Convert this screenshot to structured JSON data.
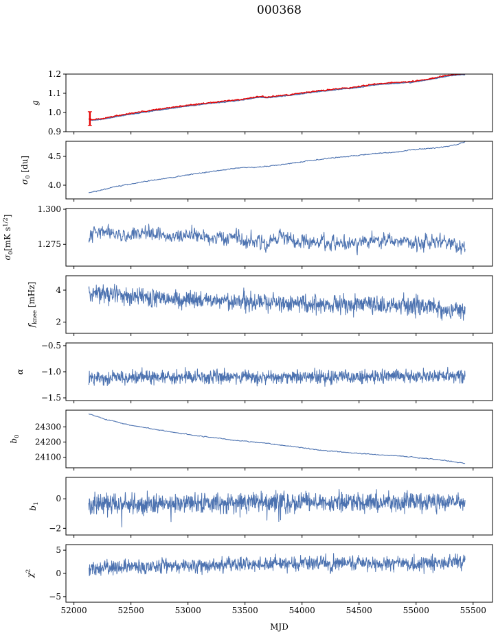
{
  "title": "000368",
  "chart_data": {
    "type": "line",
    "title": "000368",
    "xlabel": "MJD",
    "background": "#ffffff",
    "axis_color": "#000000",
    "line_color_primary": "#4c72b0",
    "line_color_secondary": "#e60000",
    "x_range": [
      51930,
      55670
    ],
    "x_data_range": [
      52130,
      55430
    ],
    "x_ticks": [
      {
        "v": 52000,
        "l": "52000"
      },
      {
        "v": 52500,
        "l": "52500"
      },
      {
        "v": 53000,
        "l": "53000"
      },
      {
        "v": 53500,
        "l": "53500"
      },
      {
        "v": 54000,
        "l": "54000"
      },
      {
        "v": 54500,
        "l": "54500"
      },
      {
        "v": 55000,
        "l": "55000"
      },
      {
        "v": 55500,
        "l": "55500"
      }
    ],
    "panels": [
      {
        "name": "g",
        "ylabel": [
          {
            "t": "g",
            "i": 1
          }
        ],
        "ylim": [
          0.9,
          1.2
        ],
        "yticks": [
          {
            "v": 0.9,
            "l": "0.9"
          },
          {
            "v": 1.0,
            "l": "1.0"
          },
          {
            "v": 1.1,
            "l": "1.1"
          },
          {
            "v": 1.2,
            "l": "1.2"
          }
        ],
        "series": [
          {
            "name": "gain-fit",
            "color": "#4c72b0",
            "lw": 1.7,
            "noise": 0.0012,
            "smooth": 0.5,
            "points": 700,
            "seed": 11,
            "trend": [
              [
                52130,
                0.965
              ],
              [
                52160,
                0.96
              ],
              [
                52250,
                0.965
              ],
              [
                52400,
                0.982
              ],
              [
                52600,
                1.001
              ],
              [
                52800,
                1.018
              ],
              [
                53000,
                1.034
              ],
              [
                53200,
                1.048
              ],
              [
                53400,
                1.06
              ],
              [
                53550,
                1.072
              ],
              [
                53620,
                1.08
              ],
              [
                53700,
                1.077
              ],
              [
                53900,
                1.09
              ],
              [
                54100,
                1.106
              ],
              [
                54300,
                1.119
              ],
              [
                54500,
                1.131
              ],
              [
                54650,
                1.145
              ],
              [
                54800,
                1.152
              ],
              [
                54950,
                1.156
              ],
              [
                55100,
                1.17
              ],
              [
                55200,
                1.181
              ],
              [
                55300,
                1.192
              ],
              [
                55380,
                1.197
              ],
              [
                55430,
                1.198
              ]
            ]
          },
          {
            "name": "gain-data",
            "color": "#e60000",
            "lw": 1.3,
            "noise": 0.0022,
            "smooth": 0.35,
            "points": 900,
            "seed": 12,
            "offset": 0.004,
            "trend_from": 0
          }
        ],
        "errorbar": {
          "x": 52140,
          "y": 0.968,
          "yerr": 0.036,
          "color": "#e60000"
        }
      },
      {
        "name": "sigma0_du",
        "ylabel": [
          {
            "t": "σ",
            "i": 1
          },
          {
            "t": "0",
            "sub": 1
          },
          {
            "t": " [du]"
          }
        ],
        "ylim": [
          3.762,
          4.762
        ],
        "yticks": [
          {
            "v": 4.0,
            "l": "4.0"
          },
          {
            "v": 4.5,
            "l": "4.5"
          }
        ],
        "series": [
          {
            "name": "sigma0-du",
            "color": "#4c72b0",
            "lw": 1.1,
            "noise": 0.006,
            "smooth": 0.4,
            "points": 700,
            "seed": 21,
            "trend": [
              [
                52130,
                3.87
              ],
              [
                52250,
                3.92
              ],
              [
                52400,
                3.99
              ],
              [
                52550,
                4.04
              ],
              [
                52700,
                4.09
              ],
              [
                52850,
                4.13
              ],
              [
                53000,
                4.18
              ],
              [
                53150,
                4.22
              ],
              [
                53300,
                4.26
              ],
              [
                53430,
                4.3
              ],
              [
                53500,
                4.305
              ],
              [
                53600,
                4.31
              ],
              [
                53750,
                4.34
              ],
              [
                53900,
                4.38
              ],
              [
                54050,
                4.42
              ],
              [
                54200,
                4.46
              ],
              [
                54350,
                4.49
              ],
              [
                54500,
                4.52
              ],
              [
                54650,
                4.55
              ],
              [
                54800,
                4.57
              ],
              [
                54950,
                4.61
              ],
              [
                55100,
                4.64
              ],
              [
                55200,
                4.65
              ],
              [
                55300,
                4.68
              ],
              [
                55380,
                4.72
              ],
              [
                55430,
                4.75
              ]
            ]
          }
        ]
      },
      {
        "name": "sigma0_mks",
        "ylabel": [
          {
            "t": "σ",
            "i": 1
          },
          {
            "t": "0",
            "sub": 1
          },
          {
            "t": "[mK s"
          },
          {
            "t": "1/2",
            "sup": 1
          },
          {
            "t": "]"
          }
        ],
        "ylim": [
          1.2595,
          1.3005
        ],
        "yticks": [
          {
            "v": 1.275,
            "l": "1.275"
          },
          {
            "v": 1.3,
            "l": "1.300"
          }
        ],
        "series": [
          {
            "name": "sigma0-mks",
            "color": "#4c72b0",
            "lw": 1.0,
            "noise": 0.0037,
            "smooth": 0.5,
            "points": 1100,
            "seed": 31,
            "trend": [
              [
                52130,
                1.2765
              ],
              [
                52190,
                1.2835
              ],
              [
                52260,
                1.2865
              ],
              [
                52350,
                1.2835
              ],
              [
                52450,
                1.281
              ],
              [
                52600,
                1.2825
              ],
              [
                52750,
                1.2805
              ],
              [
                52900,
                1.281
              ],
              [
                53050,
                1.2815
              ],
              [
                53200,
                1.2785
              ],
              [
                53350,
                1.2795
              ],
              [
                53500,
                1.2775
              ],
              [
                53650,
                1.2775
              ],
              [
                53800,
                1.279
              ],
              [
                53950,
                1.278
              ],
              [
                54100,
                1.2775
              ],
              [
                54250,
                1.2765
              ],
              [
                54400,
                1.2765
              ],
              [
                54550,
                1.2775
              ],
              [
                54700,
                1.278
              ],
              [
                54850,
                1.2775
              ],
              [
                55000,
                1.2765
              ],
              [
                55150,
                1.278
              ],
              [
                55250,
                1.2775
              ],
              [
                55350,
                1.2735
              ],
              [
                55430,
                1.2725
              ]
            ]
          }
        ]
      },
      {
        "name": "fknee",
        "ylabel": [
          {
            "t": "f",
            "i": 1
          },
          {
            "t": "knee",
            "sub": 1
          },
          {
            "t": " [mHz]"
          }
        ],
        "ylim": [
          1.3,
          4.9
        ],
        "yticks": [
          {
            "v": 2,
            "l": "2"
          },
          {
            "v": 4,
            "l": "4"
          }
        ],
        "series": [
          {
            "name": "fknee",
            "color": "#4c72b0",
            "lw": 1.0,
            "noise": 0.37,
            "smooth": 0.15,
            "points": 1300,
            "seed": 41,
            "trend": [
              [
                52130,
                3.85
              ],
              [
                52250,
                3.8
              ],
              [
                52400,
                3.65
              ],
              [
                52600,
                3.55
              ],
              [
                52800,
                3.45
              ],
              [
                53000,
                3.4
              ],
              [
                53300,
                3.35
              ],
              [
                53600,
                3.3
              ],
              [
                53900,
                3.2
              ],
              [
                54200,
                3.1
              ],
              [
                54500,
                3.05
              ],
              [
                54800,
                3.05
              ],
              [
                55000,
                3.0
              ],
              [
                55200,
                2.95
              ],
              [
                55350,
                2.8
              ],
              [
                55430,
                2.7
              ]
            ]
          }
        ]
      },
      {
        "name": "alpha",
        "ylabel": [
          {
            "t": "α",
            "i": 1
          }
        ],
        "ylim": [
          -1.552,
          -0.448
        ],
        "yticks": [
          {
            "v": -0.5,
            "l": "−0.5"
          },
          {
            "v": -1.0,
            "l": "−1.0"
          },
          {
            "v": -1.5,
            "l": "−1.5"
          }
        ],
        "series": [
          {
            "name": "alpha",
            "color": "#4c72b0",
            "lw": 1.0,
            "noise": 0.085,
            "smooth": 0.1,
            "points": 1300,
            "seed": 51,
            "trend": [
              [
                52130,
                -1.11
              ],
              [
                53500,
                -1.1
              ],
              [
                54500,
                -1.1
              ],
              [
                55430,
                -1.08
              ]
            ]
          }
        ]
      },
      {
        "name": "b0",
        "ylabel": [
          {
            "t": "b",
            "i": 1
          },
          {
            "t": "0",
            "sub": 1
          }
        ],
        "ylim": [
          24030,
          24410
        ],
        "yticks": [
          {
            "v": 24300,
            "l": "24300"
          },
          {
            "v": 24200,
            "l": "24200"
          },
          {
            "v": 24100,
            "l": "24100"
          }
        ],
        "series": [
          {
            "name": "b0",
            "color": "#4c72b0",
            "lw": 1.1,
            "noise": 2.0,
            "smooth": 0.4,
            "points": 600,
            "seed": 61,
            "trend": [
              [
                52130,
                24385
              ],
              [
                52300,
                24345
              ],
              [
                52500,
                24310
              ],
              [
                52700,
                24285
              ],
              [
                52900,
                24260
              ],
              [
                53100,
                24240
              ],
              [
                53300,
                24222
              ],
              [
                53400,
                24212
              ],
              [
                53500,
                24205
              ],
              [
                53700,
                24190
              ],
              [
                53900,
                24172
              ],
              [
                54000,
                24163
              ],
              [
                54150,
                24146
              ],
              [
                54300,
                24138
              ],
              [
                54500,
                24124
              ],
              [
                54700,
                24115
              ],
              [
                54900,
                24105
              ],
              [
                55100,
                24090
              ],
              [
                55250,
                24080
              ],
              [
                55430,
                24057
              ]
            ]
          }
        ]
      },
      {
        "name": "b1",
        "ylabel": [
          {
            "t": "b",
            "i": 1
          },
          {
            "t": "1",
            "sub": 1
          }
        ],
        "ylim": [
          -2.45,
          1.45
        ],
        "yticks": [
          {
            "v": 0,
            "l": "0"
          },
          {
            "v": -2,
            "l": "−2"
          }
        ],
        "series": [
          {
            "name": "b1",
            "color": "#4c72b0",
            "lw": 1.0,
            "noise": 0.43,
            "smooth": 0.05,
            "points": 1300,
            "seed": 71,
            "spike_p": 0.004,
            "spike_amp": -1.4,
            "trend": [
              [
                52130,
                -0.38
              ],
              [
                52600,
                -0.35
              ],
              [
                53200,
                -0.28
              ],
              [
                54000,
                -0.22
              ],
              [
                54800,
                -0.2
              ],
              [
                55430,
                -0.22
              ]
            ]
          }
        ]
      },
      {
        "name": "chi2",
        "ylabel": [
          {
            "t": "χ",
            "i": 1
          },
          {
            "t": "2",
            "sup": 1
          }
        ],
        "ylim": [
          -6.2,
          6.2
        ],
        "yticks": [
          {
            "v": 5,
            "l": "5"
          },
          {
            "v": 0,
            "l": "0"
          },
          {
            "v": -5,
            "l": "−5"
          }
        ],
        "series": [
          {
            "name": "chi2",
            "color": "#4c72b0",
            "lw": 1.0,
            "noise": 1.0,
            "smooth": 0.15,
            "points": 1300,
            "seed": 81,
            "trend": [
              [
                52130,
                1.1
              ],
              [
                52600,
                1.5
              ],
              [
                53200,
                1.7
              ],
              [
                54000,
                2.1
              ],
              [
                54600,
                2.1
              ],
              [
                55000,
                2.0
              ],
              [
                55430,
                2.7
              ]
            ]
          }
        ]
      }
    ]
  }
}
